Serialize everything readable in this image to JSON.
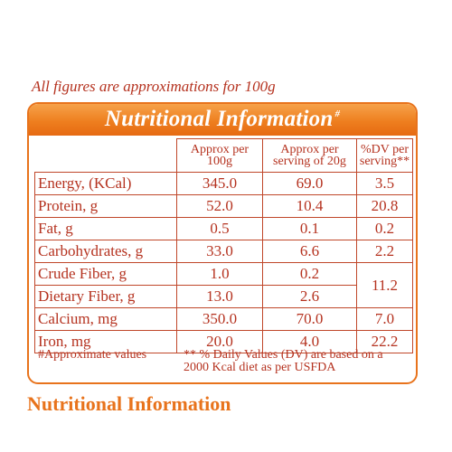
{
  "note": "All figures are approximations for 100g",
  "card": {
    "title": "Nutritional Information",
    "title_mark": "#",
    "columns": [
      "Approx per 100g",
      "Approx per serving of 20g",
      "%DV per serving**"
    ],
    "rows": [
      {
        "label": "Energy, (KCal)",
        "per100": "345.0",
        "per20": "69.0",
        "dv": "3.5"
      },
      {
        "label": "Protein, g",
        "per100": "52.0",
        "per20": "10.4",
        "dv": "20.8"
      },
      {
        "label": "Fat, g",
        "per100": "0.5",
        "per20": "0.1",
        "dv": "0.2"
      },
      {
        "label": "Carbohydrates, g",
        "per100": "33.0",
        "per20": "6.6",
        "dv": "2.2"
      },
      {
        "label": "Crude Fiber, g",
        "per100": "1.0",
        "per20": "0.2",
        "dv": "11.2"
      },
      {
        "label": "Dietary Fiber, g",
        "per100": "13.0",
        "per20": "2.6",
        "dv": ""
      },
      {
        "label": "Calcium, mg",
        "per100": "350.0",
        "per20": "70.0",
        "dv": "7.0"
      },
      {
        "label": "Iron, mg",
        "per100": "20.0",
        "per20": "4.0",
        "dv": "22.2"
      }
    ],
    "footnote_left": "#Approximate values",
    "footnote_right": "** % Daily Values (DV) are based on a 2000 Kcal diet as per USFDA"
  },
  "section_heading": "Nutritional Information",
  "colors": {
    "accent": "#e8731c",
    "text": "#b5321f"
  }
}
